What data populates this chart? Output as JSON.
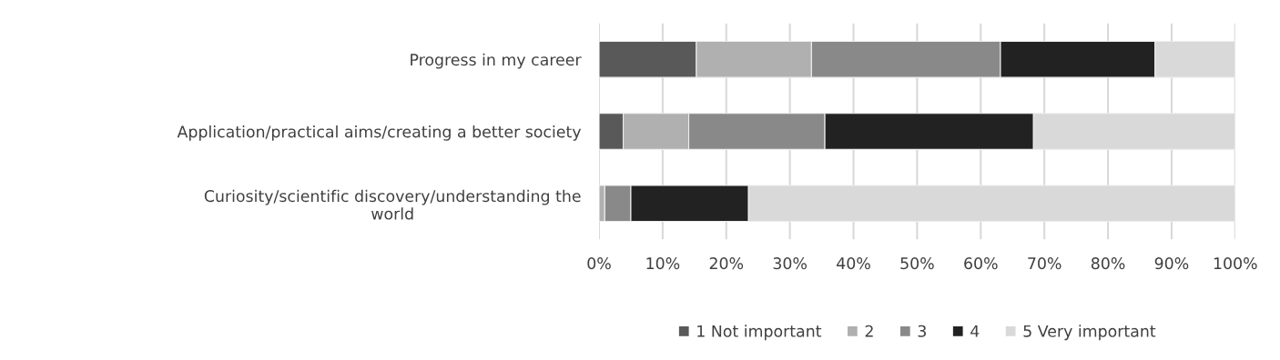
{
  "chart_data": {
    "type": "bar",
    "orientation": "horizontal",
    "stacked": true,
    "categories": [
      "Progress in my career",
      "Application/practical aims/creating a better society",
      "Curiosity/scientific discovery/understanding the\nworld"
    ],
    "series": [
      {
        "name": "1 Not important",
        "color": "#595959",
        "values": [
          15.3,
          3.8,
          0
        ]
      },
      {
        "name": "2",
        "color": "#b0b0b0",
        "values": [
          18.1,
          10.3,
          0.9
        ]
      },
      {
        "name": "3",
        "color": "#898989",
        "values": [
          29.7,
          21.4,
          4.1
        ]
      },
      {
        "name": "4",
        "color": "#222222",
        "values": [
          24.3,
          32.8,
          18.5
        ]
      },
      {
        "name": "5 Very important",
        "color": "#d9d9d9",
        "values": [
          12.6,
          31.7,
          76.5
        ]
      }
    ],
    "xlim": [
      0,
      100
    ],
    "xticks": [
      {
        "value": 0,
        "label": "0%"
      },
      {
        "value": 10,
        "label": "10%"
      },
      {
        "value": 20,
        "label": "20%"
      },
      {
        "value": 30,
        "label": "30%"
      },
      {
        "value": 40,
        "label": "40%"
      },
      {
        "value": 50,
        "label": "50%"
      },
      {
        "value": 60,
        "label": "60%"
      },
      {
        "value": 70,
        "label": "70%"
      },
      {
        "value": 80,
        "label": "80%"
      },
      {
        "value": 90,
        "label": "90%"
      },
      {
        "value": 100,
        "label": "100%"
      }
    ],
    "grid": "x",
    "legend": "bottom"
  }
}
